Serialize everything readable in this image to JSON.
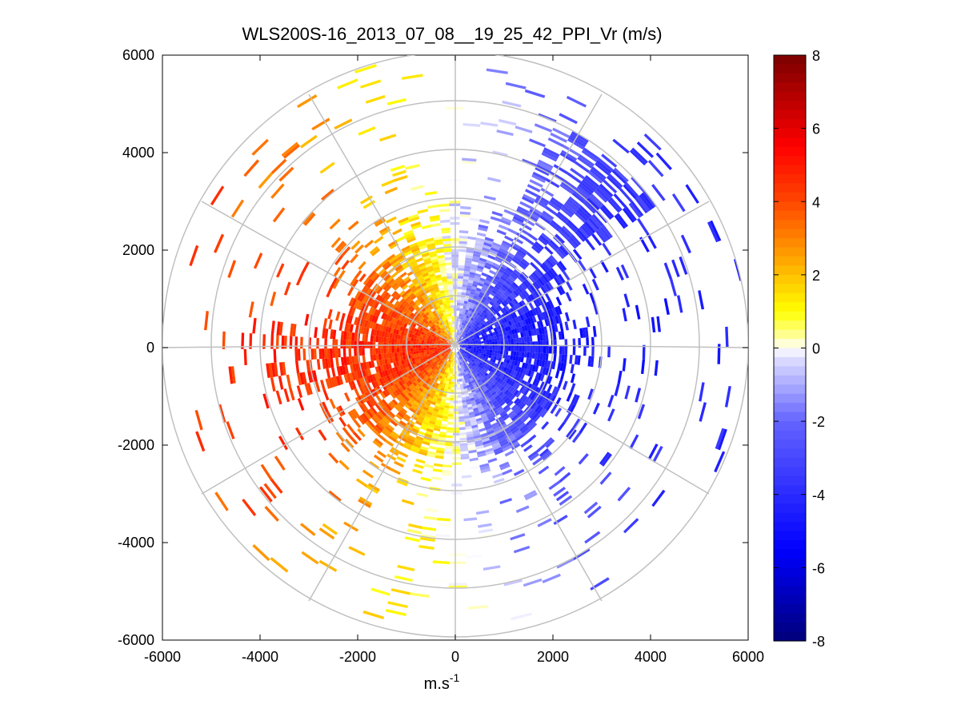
{
  "chart_data": {
    "type": "heatmap",
    "subtype": "polar-ppi",
    "title": "WLS200S-16_2013_07_08__19_25_42_PPI_Vr (m/s)",
    "xlabel_base": "m.s",
    "xlabel_exp": "-1",
    "ylabel": "",
    "xlim": [
      -6000,
      6000
    ],
    "ylim": [
      -6000,
      6000
    ],
    "x_ticks": [
      -6000,
      -4000,
      -2000,
      0,
      2000,
      4000,
      6000
    ],
    "y_ticks": [
      -6000,
      -4000,
      -2000,
      0,
      2000,
      4000,
      6000
    ],
    "x_tick_labels": [
      "-6000",
      "-4000",
      "-2000",
      "0",
      "2000",
      "4000",
      "6000"
    ],
    "y_tick_labels": [
      "-6000",
      "-4000",
      "-2000",
      "0",
      "2000",
      "4000",
      "6000"
    ],
    "range_rings": [
      1000,
      2000,
      3000,
      4000,
      5000,
      6000
    ],
    "radial_spokes_deg": [
      0,
      30,
      60,
      90,
      120,
      150,
      180,
      210,
      240,
      270,
      300,
      330
    ],
    "grid": true,
    "colorbar": {
      "min": -8,
      "max": 8,
      "ticks": [
        8,
        6,
        4,
        2,
        0,
        -2,
        -4,
        -6,
        -8
      ],
      "tick_labels": [
        "8",
        "6",
        "4",
        "2",
        "0",
        "-2",
        "-4",
        "-6",
        "-8"
      ],
      "unit": "m/s"
    },
    "colors": {
      "max_red": "#7a0000",
      "red": "#ff0000",
      "orange": "#ff8000",
      "yellow": "#ffff00",
      "white": "#ffffff",
      "light_blue": "#c8c8ff",
      "blue": "#0000ff",
      "max_blue": "#00007a",
      "grid": "#c0c0c0"
    },
    "velocity_pattern": "Radial velocity field: positive (toward red/orange/yellow) on the western half, negative (blue) on the eastern half; dense coverage within ~2500 m range, sparse patches to 6000 m."
  }
}
